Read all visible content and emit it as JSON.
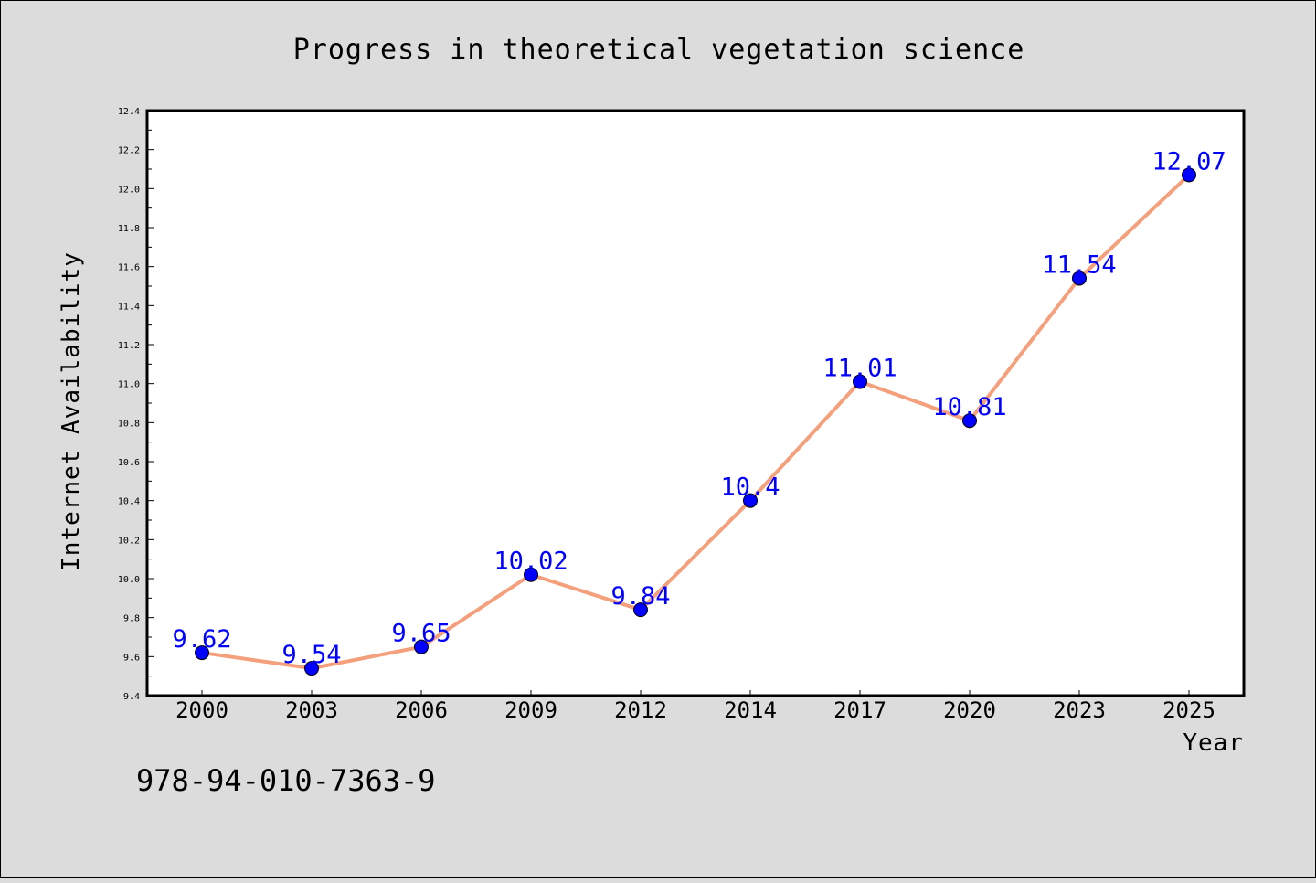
{
  "chart_data": {
    "type": "line",
    "title": "Progress in theoretical vegetation science",
    "xlabel": "Year",
    "ylabel": "Internet Availability",
    "categories": [
      "2000",
      "2003",
      "2006",
      "2009",
      "2012",
      "2014",
      "2017",
      "2020",
      "2023",
      "2025"
    ],
    "values": [
      9.62,
      9.54,
      9.65,
      10.02,
      9.84,
      10.4,
      11.01,
      10.81,
      11.54,
      12.07
    ],
    "data_labels": [
      "9.62",
      "9.54",
      "9.65",
      "10.02",
      "9.84",
      "10.4",
      "11.01",
      "10.81",
      "11.54",
      "12.07"
    ],
    "ylim": [
      9.4,
      12.4
    ],
    "yticks": [
      "9.4",
      "9.6",
      "9.8",
      "10.0",
      "10.2",
      "10.4",
      "10.6",
      "10.8",
      "11.0",
      "11.2",
      "11.4",
      "11.6",
      "11.8",
      "12.0",
      "12.2",
      "12.4"
    ],
    "grid": false,
    "line_color": "#f4a07c",
    "marker_color": "#0000ff",
    "label_color": "#0000ff"
  },
  "footer_text": "978-94-010-7363-9"
}
